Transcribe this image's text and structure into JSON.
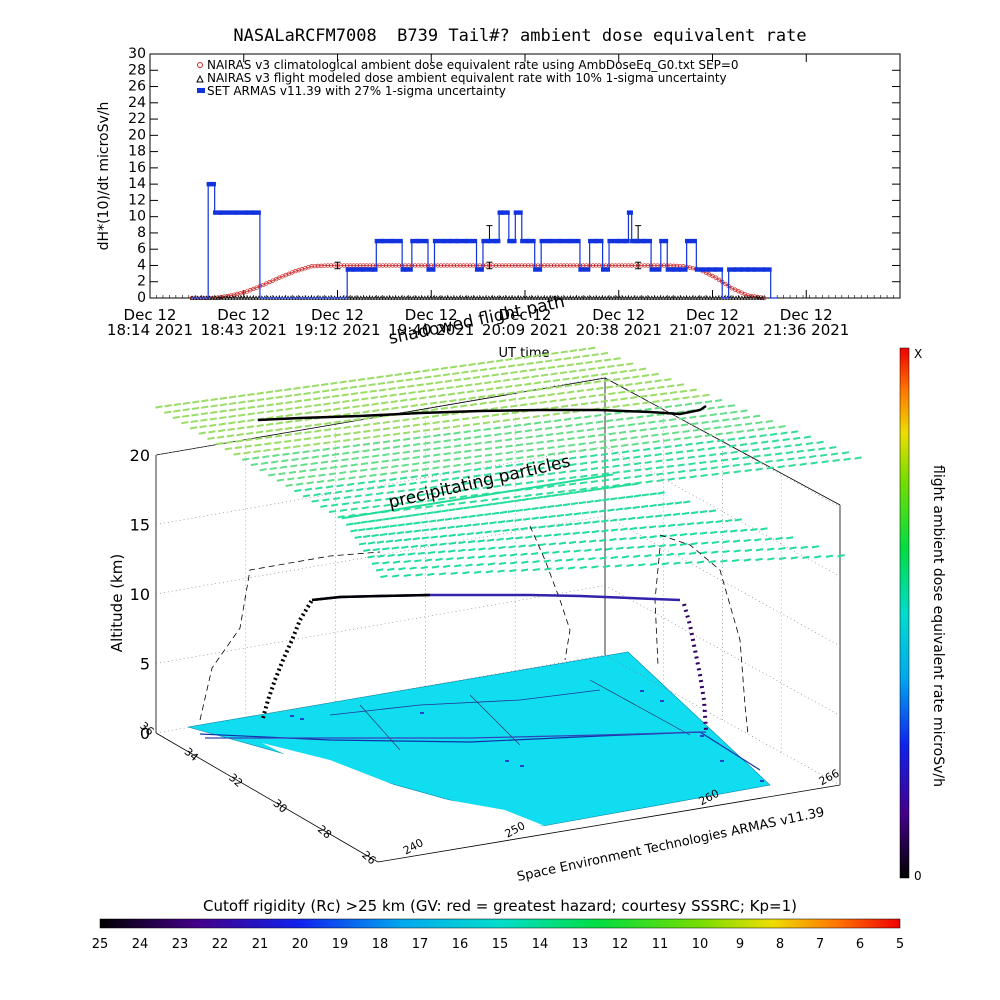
{
  "chart_data": [
    {
      "type": "line",
      "title": "NASALaRCFM7008  B739 Tail#? ambient dose equivalent rate",
      "ylabel": "dH*(10)/dt microSv/h",
      "xlabel": "UT time",
      "ylim": [
        0,
        30
      ],
      "yticks": [
        0,
        2,
        4,
        6,
        8,
        10,
        12,
        14,
        16,
        18,
        20,
        22,
        24,
        26,
        28,
        30
      ],
      "xlim_min": [
        0,
        232
      ],
      "xticks": [
        {
          "min": 0,
          "date": "Dec 12",
          "time": "18:14 2021"
        },
        {
          "min": 29,
          "date": "Dec 12",
          "time": "18:43 2021"
        },
        {
          "min": 58,
          "date": "Dec 12",
          "time": "19:12 2021"
        },
        {
          "min": 87,
          "date": "Dec 12",
          "time": "19:40 2021"
        },
        {
          "min": 116,
          "date": "Dec 12",
          "time": "20:09 2021"
        },
        {
          "min": 145,
          "date": "Dec 12",
          "time": "20:38 2021"
        },
        {
          "min": 174,
          "date": "Dec 12",
          "time": "21:07 2021"
        },
        {
          "min": 203,
          "date": "Dec 12",
          "time": "21:36 2021"
        }
      ],
      "legend": [
        {
          "label": "NAIRAS v3 climatological ambient dose equivalent rate using AmbDoseEq_G0.txt SEP=0",
          "color": "#cc2222"
        },
        {
          "label": "NAIRAS v3 flight modeled dose ambient equivalent rate with 10% 1-sigma uncertainty",
          "color": "#000000"
        },
        {
          "label": "SET ARMAS v11.39 with 27% 1-sigma uncertainty",
          "color": "#1133dd"
        }
      ],
      "series": [
        {
          "name": "NAIRAS v3 climatological ambient dose equivalent rate using AmbDoseEq_G0.txt SEP=0",
          "color": "#cc2222",
          "x": [
            13,
            20,
            25,
            30,
            35,
            40,
            45,
            50,
            55,
            60,
            65,
            70,
            75,
            80,
            85,
            90,
            95,
            100,
            105,
            110,
            115,
            120,
            125,
            130,
            135,
            140,
            145,
            150,
            155,
            160,
            165,
            170,
            175,
            180,
            185,
            190
          ],
          "y": [
            0,
            0,
            0.3,
            0.8,
            1.6,
            2.5,
            3.3,
            3.9,
            4.0,
            4.0,
            4.0,
            4.0,
            4.0,
            4.0,
            4.0,
            4.0,
            4.0,
            4.0,
            4.0,
            4.0,
            4.0,
            4.0,
            4.0,
            4.0,
            4.0,
            4.0,
            4.0,
            4.0,
            4.0,
            4.0,
            3.9,
            3.5,
            2.5,
            1.2,
            0.3,
            0
          ]
        },
        {
          "name": "NAIRAS v3 flight modeled dose ambient equivalent rate with 10% 1-sigma uncertainty",
          "color": "#000000",
          "x": [
            13,
            20,
            30,
            45,
            60,
            75,
            90,
            105,
            120,
            135,
            150,
            165,
            175,
            190
          ],
          "y": [
            0,
            0,
            0,
            0,
            0,
            0,
            0,
            0,
            0,
            0,
            0,
            0,
            0,
            0
          ],
          "errorbars": [
            {
              "x": 58,
              "y": 4.0,
              "err": 0.4
            },
            {
              "x": 105,
              "y": 8.0,
              "err": 0.9
            },
            {
              "x": 105,
              "y": 4.0,
              "err": 0.4
            },
            {
              "x": 151,
              "y": 8.0,
              "err": 0.9
            },
            {
              "x": 151,
              "y": 4.0,
              "err": 0.4
            }
          ]
        },
        {
          "name": "SET ARMAS v11.39 with 27% 1-sigma uncertainty",
          "color": "#1133dd",
          "x": [
            13,
            17,
            18,
            19,
            20,
            22,
            27,
            30,
            32,
            34,
            36,
            60,
            61,
            63,
            66,
            69,
            70,
            72,
            75,
            78,
            79,
            81,
            83,
            86,
            88,
            91,
            93,
            95,
            98,
            101,
            103,
            105,
            107,
            108,
            109,
            111,
            112,
            113,
            115,
            117,
            119,
            121,
            124,
            127,
            130,
            133,
            136,
            138,
            140,
            142,
            145,
            147,
            148,
            149,
            150,
            151,
            153,
            155,
            158,
            160,
            162,
            164,
            166,
            169,
            171,
            173,
            175,
            177,
            179,
            181,
            183,
            185,
            187,
            190,
            192,
            194
          ],
          "y": [
            0,
            0,
            14,
            14,
            10.5,
            10.5,
            10.5,
            10.5,
            10.5,
            0,
            0,
            0,
            3.5,
            3.5,
            3.5,
            3.5,
            7,
            7,
            7,
            3.5,
            3.5,
            7,
            7,
            3.5,
            7,
            7,
            7,
            7,
            7,
            3.5,
            7,
            7,
            7,
            10.5,
            10.5,
            7,
            7,
            10.5,
            7,
            7,
            3.5,
            7,
            7,
            7,
            7,
            3.5,
            7,
            7,
            3.5,
            7,
            7,
            7,
            10.5,
            7,
            7,
            7,
            7,
            3.5,
            7,
            3.5,
            3.5,
            3.5,
            7,
            3.5,
            3.5,
            3.5,
            3.5,
            0,
            3.5,
            3.5,
            3.5,
            3.5,
            3.5,
            3.5,
            0,
            0
          ]
        }
      ]
    },
    {
      "type": "scatter",
      "subtype": "3d-flight-path",
      "annotations": [
        "shadowed flight path",
        "precipitating particles",
        "Space Environment Technologies ARMAS v11.39"
      ],
      "zlabel": "Altitude (km)",
      "zticks": [
        0,
        5,
        10,
        15,
        20
      ],
      "lat_ticks": [
        36,
        34,
        32,
        30,
        28,
        26
      ],
      "lon_ticks": [
        240,
        250,
        260,
        266
      ],
      "right_colorbar": {
        "label": "flight ambient dose equivalent rate microSv/h",
        "top_label": "X",
        "bottom_label": "0"
      },
      "bottom_colorbar": {
        "label": "Cutoff rigidity (Rc) >25 km (GV: red = greatest hazard; courtesy SSSRC; Kp=1)",
        "ticks": [
          25,
          24,
          23,
          22,
          21,
          20,
          19,
          18,
          17,
          16,
          15,
          14,
          13,
          12,
          11,
          10,
          9,
          8,
          7,
          6,
          5
        ]
      }
    }
  ]
}
